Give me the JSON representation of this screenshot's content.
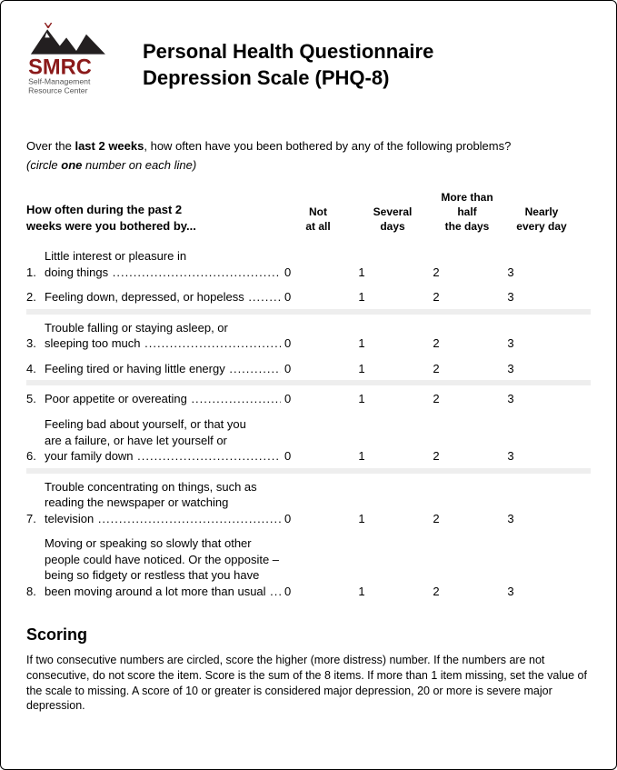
{
  "logo": {
    "brand": "SMRC",
    "sub1": "Self-Management",
    "sub2": "Resource Center"
  },
  "title_line1": "Personal Health Questionnaire",
  "title_line2": "Depression Scale (PHQ-8)",
  "intro_pre": "Over the ",
  "intro_bold": "last 2 weeks",
  "intro_post": ", how often have you been bothered by any of the following problems?",
  "intro_sub_pre": "(circle ",
  "intro_sub_bold": "one",
  "intro_sub_post": " number on each line)",
  "prompt_line1": "How often during the past 2",
  "prompt_line2": "weeks were you bothered by...",
  "cols": {
    "c0a": "Not",
    "c0b": "at all",
    "c1a": "Several",
    "c1b": "days",
    "c2a": "More than",
    "c2b": "half",
    "c2c": "the days",
    "c3a": "Nearly",
    "c3b": "every day"
  },
  "scale": {
    "v0": "0",
    "v1": "1",
    "v2": "2",
    "v3": "3"
  },
  "q": [
    {
      "n": "1.",
      "lines": [
        "Little interest or pleasure in"
      ],
      "last": "doing things"
    },
    {
      "n": "2.",
      "lines": [],
      "last": "Feeling down, depressed, or hopeless"
    },
    {
      "n": "3.",
      "lines": [
        "Trouble falling or staying asleep, or"
      ],
      "last": "sleeping too much"
    },
    {
      "n": "4.",
      "lines": [],
      "last": "Feeling tired or having little energy"
    },
    {
      "n": "5.",
      "lines": [],
      "last": "Poor appetite or overeating"
    },
    {
      "n": "6.",
      "lines": [
        "Feeling bad about yourself, or that you",
        "are a failure, or have let yourself or"
      ],
      "last": "your family down"
    },
    {
      "n": "7.",
      "lines": [
        "Trouble concentrating on things, such as",
        "reading the newspaper or watching"
      ],
      "last": "television"
    },
    {
      "n": "8.",
      "lines": [
        "Moving or speaking so slowly that other",
        "people could have noticed. Or the opposite –",
        "being so fidgety or restless that you have"
      ],
      "last": "been moving around a lot more than usual"
    }
  ],
  "scoring_h": "Scoring",
  "scoring_p": "If two consecutive numbers are circled, score the higher (more distress) number. If the numbers are not consecutive, do not score the item. Score is the sum of the 8 items. If more than 1 item missing, set the value of the scale to missing. A score of 10 or greater is considered major depression, 20 or more is severe major depression."
}
